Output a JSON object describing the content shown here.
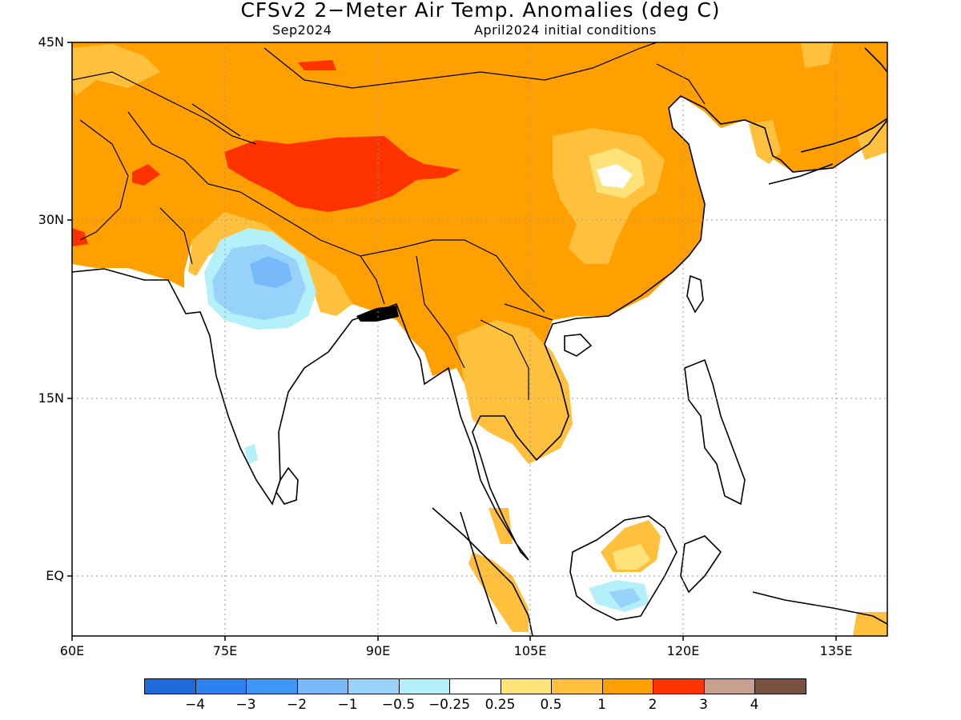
{
  "header": {
    "title": "CFSv2 2−Meter Air Temp. Anomalies (deg C)",
    "month": "Sep2024",
    "init": "April2024 initial conditions"
  },
  "axes": {
    "lat_labels": [
      "45N",
      "30N",
      "15N",
      "EQ"
    ],
    "lon_labels": [
      "60E",
      "75E",
      "90E",
      "105E",
      "120E",
      "135E"
    ]
  },
  "legend": {
    "labels": [
      "−4",
      "−3",
      "−2",
      "−1",
      "−0.5",
      "−0.25",
      "0.25",
      "0.5",
      "1",
      "2",
      "3",
      "4"
    ],
    "colors": [
      "#1E6ADB",
      "#2A81EF",
      "#3C97F5",
      "#78B9F9",
      "#96D2FA",
      "#B4F0FA",
      "#FFFFFF",
      "#FFE27A",
      "#FFC13D",
      "#FFA000",
      "#FF3300",
      "#C8A090",
      "#7A5040"
    ]
  },
  "map": {
    "region": "South and East Asia",
    "lon_range": [
      60,
      140
    ],
    "lat_range": [
      -5,
      45
    ]
  }
}
